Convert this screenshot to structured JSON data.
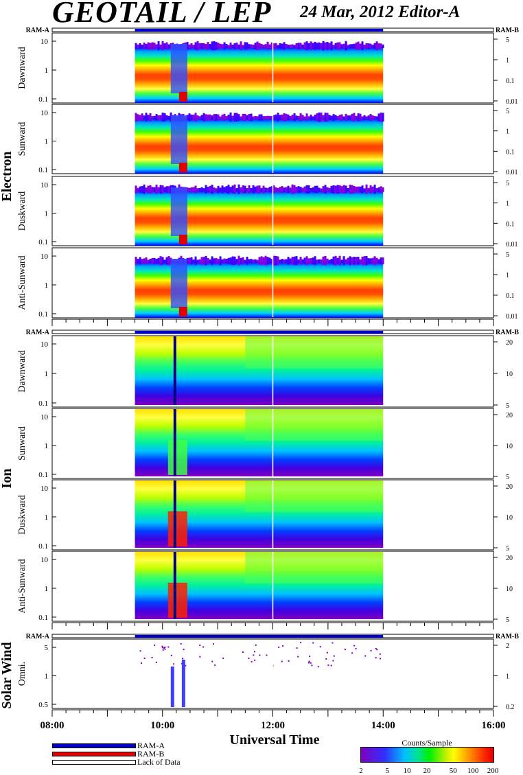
{
  "header": {
    "title": "GEOTAIL / LEP",
    "date_editor": "24 Mar, 2012   Editor-A"
  },
  "chart_data": {
    "type": "heatmap",
    "x_axis": {
      "label": "Universal Time",
      "range_hours": [
        8,
        16
      ],
      "tick_labels": [
        "08:00",
        "10:00",
        "12:00",
        "14:00",
        "16:00"
      ],
      "data_coverage_hours": [
        9.5,
        14.0
      ]
    },
    "ram_labels": {
      "left": "RAM-A",
      "right": "RAM-B"
    },
    "groups": [
      {
        "name": "Electron",
        "panels": [
          {
            "name": "Dawnward",
            "left_ticks": [
              "10",
              "1",
              "0.1"
            ],
            "right_ticks": [
              "5",
              "1",
              "0.1",
              "0.01"
            ]
          },
          {
            "name": "Sunward",
            "left_ticks": [
              "10",
              "1",
              "0.1"
            ],
            "right_ticks": [
              "5",
              "1",
              "0.1",
              "0.01"
            ]
          },
          {
            "name": "Duskward",
            "left_ticks": [
              "10",
              "1",
              "0.1"
            ],
            "right_ticks": [
              "5",
              "1",
              "0.1",
              "0.01"
            ]
          },
          {
            "name": "Anti-Sunward",
            "left_ticks": [
              "10",
              "1",
              "0.1"
            ],
            "right_ticks": [
              "5",
              "1",
              "0.1",
              "0.01"
            ]
          }
        ]
      },
      {
        "name": "Ion",
        "panels": [
          {
            "name": "Dawnward",
            "left_ticks": [
              "10",
              "1",
              "0.1"
            ],
            "right_ticks": [
              "20",
              "10",
              "5"
            ]
          },
          {
            "name": "Sunward",
            "left_ticks": [
              "10",
              "1",
              "0.1"
            ],
            "right_ticks": [
              "20",
              "10",
              "5"
            ]
          },
          {
            "name": "Duskward",
            "left_ticks": [
              "10",
              "1",
              "0.1"
            ],
            "right_ticks": [
              "20",
              "10",
              "5"
            ]
          },
          {
            "name": "Anti-Sunward",
            "left_ticks": [
              "10",
              "1",
              "0.1"
            ],
            "right_ticks": [
              "20",
              "10",
              "5"
            ]
          }
        ]
      },
      {
        "name": "Solar Wind",
        "panels": [
          {
            "name": "Omni.",
            "left_ticks": [
              "5",
              "1",
              "0.5"
            ],
            "right_ticks": [
              "2",
              "1",
              "0.2"
            ]
          }
        ]
      }
    ],
    "legend": [
      {
        "label": "RAM-A",
        "color": "#0000c8"
      },
      {
        "label": "RAM-B",
        "color": "#e00000"
      },
      {
        "label": "Lack of Data",
        "color": "#ffffff"
      }
    ],
    "colorbar": {
      "title": "Counts/Sample",
      "tick_labels": [
        "2",
        "5",
        "10",
        "20",
        "50",
        "100",
        "200"
      ],
      "scale": "log",
      "range": [
        2,
        200
      ]
    }
  }
}
